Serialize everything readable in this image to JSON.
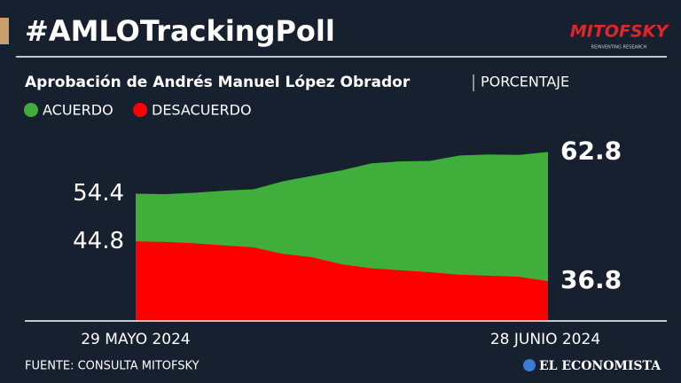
{
  "chart_data": {
    "type": "area",
    "title": "#AMLOTrackingPoll",
    "subtitle": "Aprobación de Andrés Manuel López Obrador",
    "unit_label": "PORCENTAJE",
    "categories": [
      "29 MAYO 2024",
      null,
      null,
      null,
      null,
      null,
      null,
      null,
      null,
      null,
      null,
      null,
      null,
      null,
      "28 JUNIO 2024"
    ],
    "series": [
      {
        "name": "ACUERDO",
        "color": "#3fae3a",
        "values": [
          54.4,
          54.3,
          54.6,
          55.0,
          55.3,
          56.9,
          58.0,
          59.1,
          60.5,
          60.9,
          61.0,
          62.1,
          62.3,
          62.2,
          62.8
        ]
      },
      {
        "name": "DESACUERDO",
        "color": "#ff0000",
        "values": [
          44.8,
          44.7,
          44.4,
          44.0,
          43.6,
          42.3,
          41.6,
          40.2,
          39.4,
          39.0,
          38.6,
          38.1,
          37.9,
          37.7,
          36.8
        ]
      }
    ],
    "ylim": [
      28.8,
      68.4
    ],
    "source": "FUENTE: CONSULTA MITOFSKY"
  },
  "logos": {
    "pollster": "MITOFSKY",
    "pollster_tagline": "REINVENTING RESEARCH",
    "publisher": "EL ECONOMISTA"
  }
}
